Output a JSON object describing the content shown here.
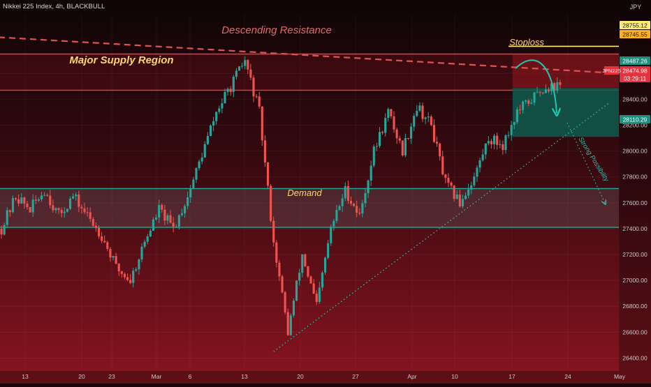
{
  "header": {
    "symbol_line": "Nikkei 225 Index, 4h, BLACKBULL",
    "currency": "JPY"
  },
  "colors": {
    "background_top": "#0e0506",
    "background_bottom": "#8a1420",
    "bull": "#26a69a",
    "bear": "#ef5350",
    "supply_line": "#f23645",
    "demand_line": "#22ab94",
    "resistance": "#e0524f",
    "stop_line": "#ffeb7a",
    "target_zone": "#0e5b4d",
    "annotation_yellow": "#ffe38a"
  },
  "chart_data": {
    "type": "candlestick",
    "title": "Nikkei 225 Index, 4h, BLACKBULL",
    "ylim": [
      26300,
      29060
    ],
    "price_ticks": [
      26400,
      26600,
      26800,
      27000,
      27200,
      27400,
      27600,
      27800,
      28000,
      28200,
      28400,
      28600
    ],
    "x_ticks": [
      "13",
      "20",
      "23",
      "Mar",
      "6",
      "13",
      "20",
      "27",
      "Apr",
      "10",
      "17",
      "24",
      "May"
    ],
    "tags": {
      "stoploss_upper": "28755.12",
      "stoploss_lower": "28745.55",
      "entry": "28487.26",
      "current_symbol": "JPN225",
      "current_price": "28474.98",
      "countdown": "03:29:11",
      "target": "28110.29"
    },
    "zones": {
      "supply": [
        28470,
        28750
      ],
      "demand": [
        27410,
        27710
      ],
      "stoploss": [
        28490,
        28745
      ],
      "target": [
        28110,
        28487
      ]
    },
    "descending_resistance": [
      {
        "bar": 0,
        "price": 28880
      },
      {
        "bar": 215,
        "price": 28600
      }
    ],
    "ascending_support": [
      {
        "bar": 95,
        "price": 26450
      },
      {
        "bar": 212,
        "price": 28370
      }
    ],
    "price_path": [
      [
        0,
        27400
      ],
      [
        5,
        27650
      ],
      [
        10,
        27550
      ],
      [
        15,
        27700
      ],
      [
        20,
        27500
      ],
      [
        25,
        27650
      ],
      [
        30,
        27500
      ],
      [
        35,
        27350
      ],
      [
        40,
        27100
      ],
      [
        45,
        27000
      ],
      [
        50,
        27300
      ],
      [
        55,
        27550
      ],
      [
        60,
        27400
      ],
      [
        65,
        27650
      ],
      [
        75,
        28300
      ],
      [
        80,
        28500
      ],
      [
        85,
        28700
      ],
      [
        90,
        28300
      ],
      [
        95,
        27300
      ],
      [
        100,
        26600
      ],
      [
        105,
        27200
      ],
      [
        110,
        26800
      ],
      [
        115,
        27400
      ],
      [
        120,
        27700
      ],
      [
        125,
        27500
      ],
      [
        130,
        28000
      ],
      [
        135,
        28300
      ],
      [
        140,
        28000
      ],
      [
        145,
        28350
      ],
      [
        150,
        28200
      ],
      [
        155,
        27750
      ],
      [
        160,
        27600
      ],
      [
        165,
        27800
      ],
      [
        170,
        28100
      ],
      [
        175,
        28050
      ],
      [
        180,
        28300
      ],
      [
        185,
        28400
      ],
      [
        190,
        28500
      ],
      [
        195,
        28500
      ]
    ],
    "annotations": {
      "resistance_label": "Descending Resistance",
      "supply_label": "Major Supply Region",
      "demand_label": "Demand",
      "stoploss_label": "Stoploss",
      "projection_label": "Strong Possibility"
    }
  }
}
